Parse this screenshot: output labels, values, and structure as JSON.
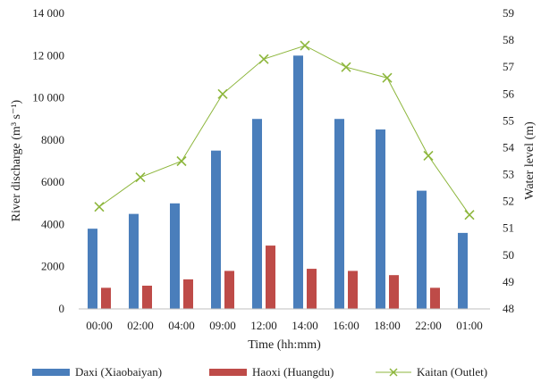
{
  "chart_data": {
    "type": "bar",
    "categories": [
      "00:00",
      "02:00",
      "04:00",
      "09:00",
      "12:00",
      "14:00",
      "16:00",
      "18:00",
      "22:00",
      "01:00"
    ],
    "series": [
      {
        "name": "Daxi (Xiaobaiyan)",
        "type": "bar",
        "axis": "left",
        "color": "#4a7ebb",
        "values": [
          3800,
          4500,
          5000,
          7500,
          9000,
          12000,
          9000,
          8500,
          5600,
          3600
        ]
      },
      {
        "name": "Haoxi (Huangdu)",
        "type": "bar",
        "axis": "left",
        "color": "#be4b48",
        "values": [
          1000,
          1100,
          1400,
          1800,
          3000,
          1900,
          1800,
          1600,
          1000,
          null
        ]
      },
      {
        "name": "Kaitan (Outlet)",
        "type": "line",
        "axis": "right",
        "color": "#8db63c",
        "marker": "x",
        "values": [
          51.8,
          52.9,
          53.5,
          56.0,
          57.3,
          57.8,
          57.0,
          56.6,
          53.7,
          51.5
        ]
      }
    ],
    "xlabel": "Time (hh:mm)",
    "ylabel": "River discharge (m³ s⁻¹)",
    "y2label": "Water level (m)",
    "ylim": [
      0,
      14000
    ],
    "y2lim": [
      48,
      59
    ],
    "yticks": [
      "0",
      "2000",
      "4000",
      "6000",
      "8000",
      "10 000",
      "12 000",
      "14 000"
    ],
    "y2ticks": [
      "48",
      "49",
      "50",
      "51",
      "52",
      "53",
      "54",
      "55",
      "56",
      "57",
      "58",
      "59"
    ],
    "grid": false,
    "legend": "bottom"
  }
}
